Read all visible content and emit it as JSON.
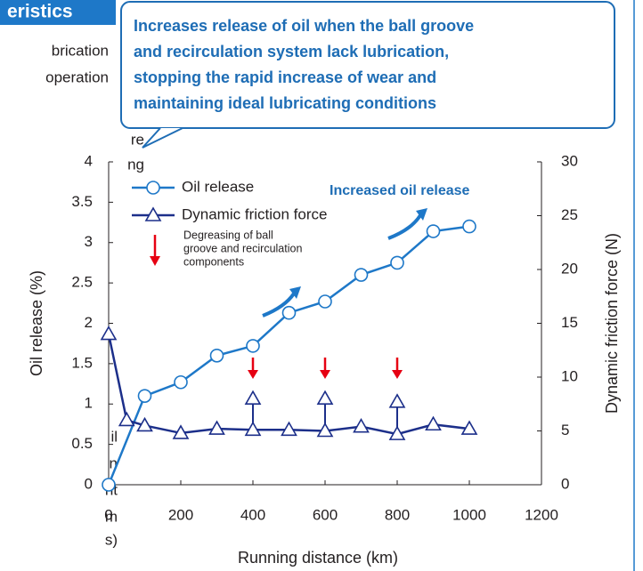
{
  "chart_data": {
    "type": "line",
    "heading": "eristics",
    "side_text": [
      "brication",
      "operation",
      "re",
      "ng",
      "il",
      "n",
      "nt",
      "m",
      "s)"
    ],
    "callout": [
      "Increases release of oil when the ball groove",
      "and recirculation system lack lubrication,",
      "stopping the rapid increase of wear and",
      "maintaining ideal lubricating conditions"
    ],
    "annotation": "Increased oil release",
    "degreasing_note": [
      "Degreasing of ball",
      "groove and recirculation",
      "components"
    ],
    "xlabel": "Running distance (km)",
    "ylabel": "Oil release (%)",
    "y2label": "Dynamic friction force (N)",
    "xlim": [
      0,
      1200
    ],
    "xticks": [
      0,
      200,
      400,
      600,
      800,
      1000,
      1200
    ],
    "ylim": [
      0,
      4
    ],
    "yticks": [
      0,
      0.5,
      1,
      1.5,
      2,
      2.5,
      3,
      3.5,
      4
    ],
    "y2lim": [
      0,
      30
    ],
    "y2ticks": [
      0,
      5,
      10,
      15,
      20,
      25,
      30
    ],
    "series": [
      {
        "name": "Oil release",
        "color": "#1e78c8",
        "marker": "circle",
        "x": [
          0,
          100,
          200,
          300,
          400,
          500,
          600,
          700,
          800,
          900,
          1000
        ],
        "values": [
          0,
          1.1,
          1.27,
          1.6,
          1.72,
          2.13,
          2.27,
          2.6,
          2.75,
          3.14,
          3.2
        ]
      },
      {
        "name": "Dynamic friction force",
        "color": "#1c2f8a",
        "marker": "triangle",
        "axis": "y2",
        "x": [
          0,
          50,
          100,
          200,
          300,
          400,
          500,
          600,
          700,
          800,
          900,
          1000
        ],
        "values": [
          14,
          6,
          5.5,
          4.8,
          5.2,
          5.1,
          5.1,
          5,
          5.4,
          4.7,
          5.6,
          5.2
        ],
        "peaks_x": [
          400,
          600,
          800
        ],
        "peaks": [
          8,
          8,
          7.7
        ]
      }
    ]
  }
}
